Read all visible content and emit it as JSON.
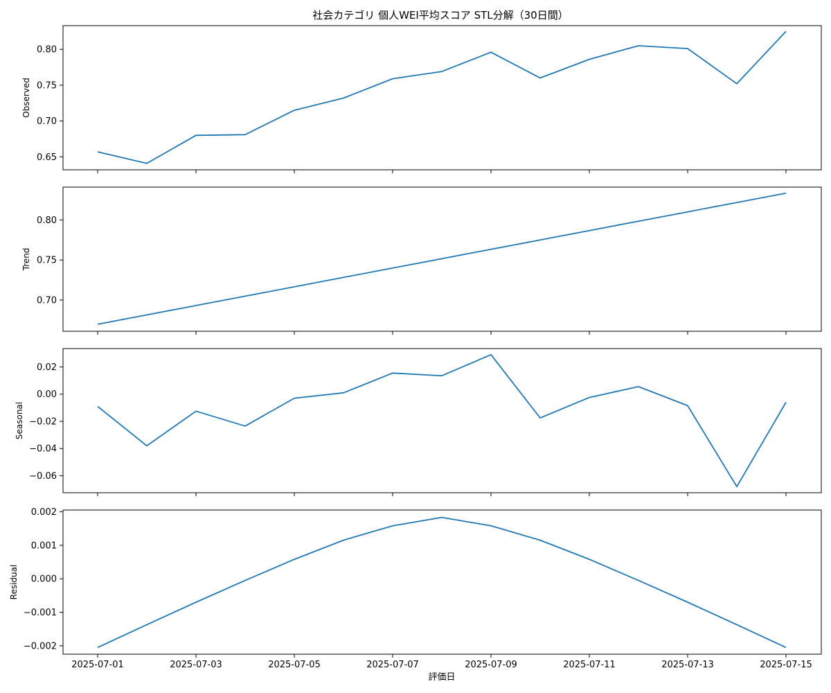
{
  "chart_data": {
    "type": "line",
    "title": "社会カテゴリ 個人WEI平均スコア STL分解（30日間）",
    "xlabel": "評価日",
    "x": [
      "2025-07-01",
      "2025-07-02",
      "2025-07-03",
      "2025-07-04",
      "2025-07-05",
      "2025-07-06",
      "2025-07-07",
      "2025-07-08",
      "2025-07-09",
      "2025-07-10",
      "2025-07-11",
      "2025-07-12",
      "2025-07-13",
      "2025-07-14",
      "2025-07-15"
    ],
    "xticks": [
      "2025-07-01",
      "2025-07-03",
      "2025-07-05",
      "2025-07-07",
      "2025-07-09",
      "2025-07-11",
      "2025-07-13",
      "2025-07-15"
    ],
    "line_color": "#1f77b4",
    "panels": [
      {
        "ylabel": "Observed",
        "ylim": [
          0.632,
          0.833
        ],
        "yticks": [
          0.65,
          0.7,
          0.75,
          0.8
        ],
        "ytick_labels": [
          "0.65",
          "0.70",
          "0.75",
          "0.80"
        ],
        "values": [
          0.657,
          0.641,
          0.68,
          0.681,
          0.715,
          0.732,
          0.759,
          0.769,
          0.796,
          0.76,
          0.786,
          0.805,
          0.801,
          0.752,
          0.825
        ]
      },
      {
        "ylabel": "Trend",
        "ylim": [
          0.661,
          0.841
        ],
        "yticks": [
          0.7,
          0.75,
          0.8
        ],
        "ytick_labels": [
          "0.70",
          "0.75",
          "0.80"
        ],
        "values": [
          0.6697,
          0.6814,
          0.6931,
          0.7048,
          0.7165,
          0.7282,
          0.7399,
          0.7516,
          0.7633,
          0.775,
          0.7867,
          0.7984,
          0.8101,
          0.8218,
          0.8335
        ]
      },
      {
        "ylabel": "Seasonal",
        "ylim": [
          -0.0725,
          0.0335
        ],
        "yticks": [
          -0.06,
          -0.04,
          -0.02,
          0.0,
          0.02
        ],
        "ytick_labels": [
          "−0.06",
          "−0.04",
          "−0.02",
          "0.00",
          "0.02"
        ],
        "values": [
          -0.009,
          -0.038,
          -0.0125,
          -0.0235,
          -0.003,
          0.001,
          0.0155,
          0.0135,
          0.029,
          -0.0175,
          -0.0025,
          0.0055,
          -0.0085,
          -0.068,
          -0.006
        ]
      },
      {
        "ylabel": "Residual",
        "ylim": [
          -0.00225,
          0.00205
        ],
        "yticks": [
          -0.002,
          -0.001,
          0.0,
          0.001,
          0.002
        ],
        "ytick_labels": [
          "−0.002",
          "−0.001",
          "0.000",
          "0.001",
          "0.002"
        ],
        "values": [
          -0.00205,
          -0.00137,
          -0.0007,
          -5e-05,
          0.00058,
          0.00115,
          0.00158,
          0.00183,
          0.00158,
          0.00115,
          0.00058,
          -5e-05,
          -0.0007,
          -0.00137,
          -0.00205
        ]
      }
    ]
  }
}
